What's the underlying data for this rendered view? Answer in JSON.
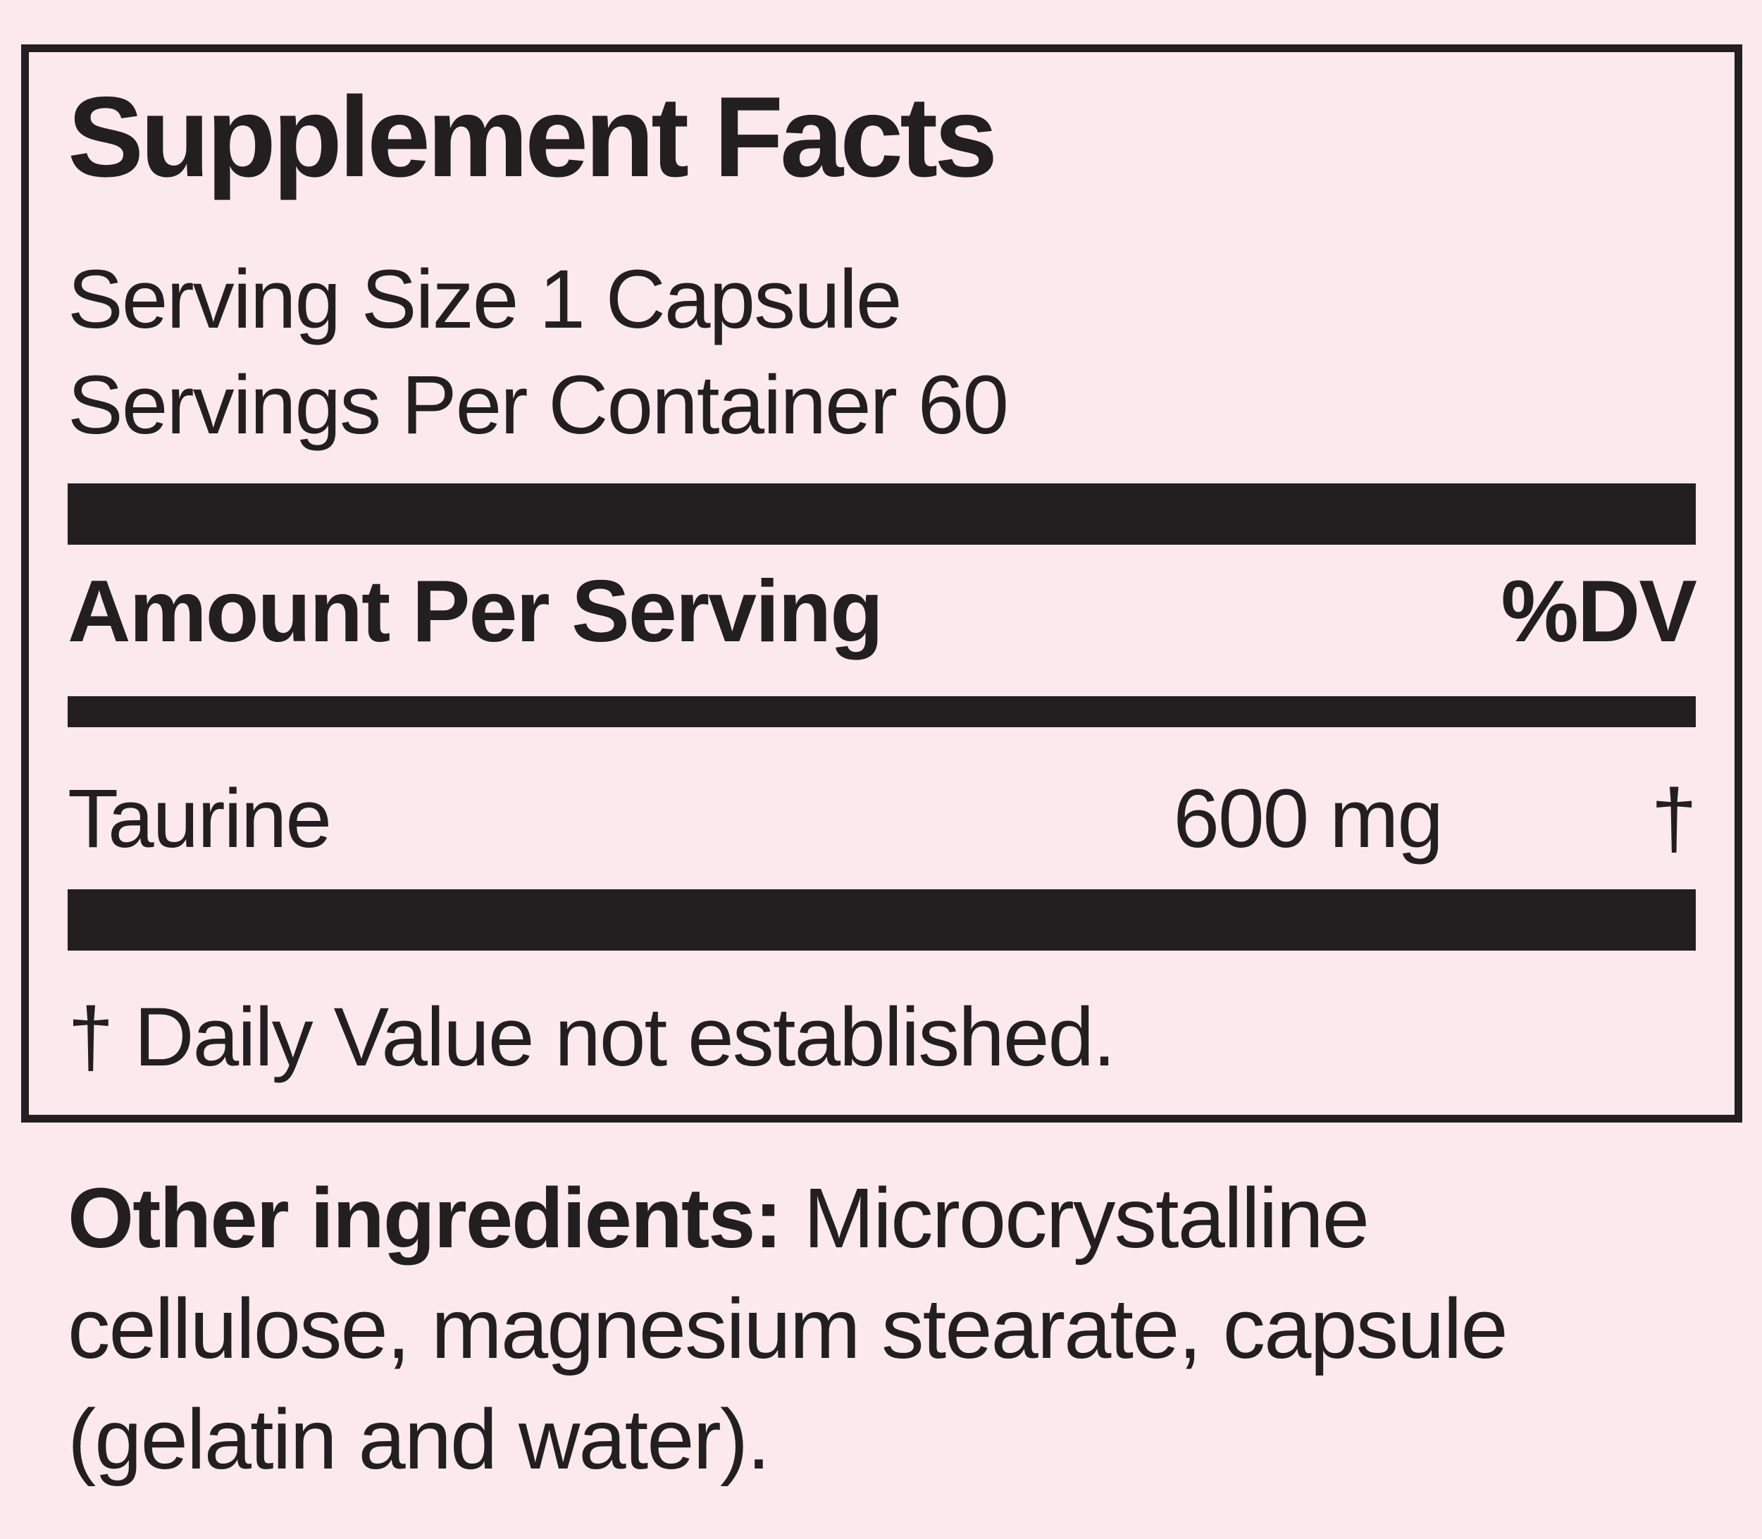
{
  "colors": {
    "background": "#fbe9ee",
    "ink": "#231f20"
  },
  "supplement_facts": {
    "title": "Supplement Facts",
    "serving_size": "Serving Size 1 Capsule",
    "servings_per_container": "Servings Per Container 60",
    "columns": {
      "amount": "Amount Per Serving",
      "dv": "%DV"
    },
    "ingredients": [
      {
        "name": "Taurine",
        "amount": "600 mg",
        "dv": "†"
      }
    ],
    "footnote": "† Daily Value not established."
  },
  "other_ingredients": {
    "label": "Other ingredients:",
    "line1": "Microcrystalline",
    "line2": "cellulose, magnesium stearate, capsule",
    "line3": "(gelatin and water)."
  }
}
